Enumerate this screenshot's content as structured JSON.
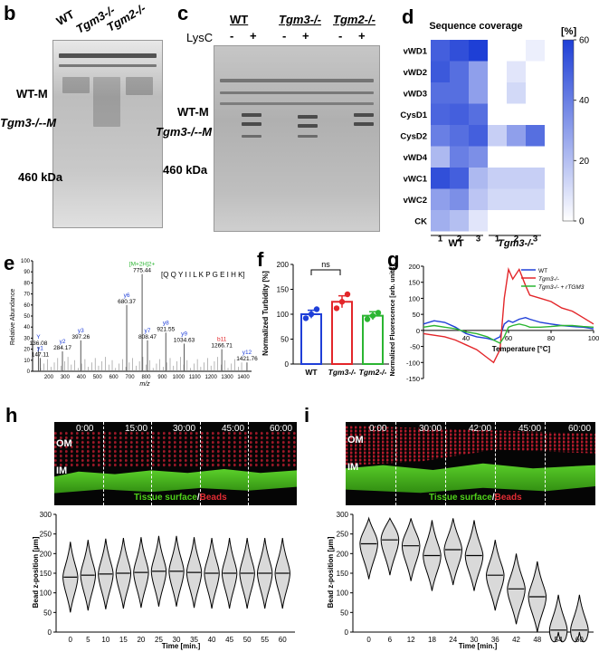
{
  "panels": {
    "b": "b",
    "c": "c",
    "d": "d",
    "e": "e",
    "f": "f",
    "g": "g",
    "h": "h",
    "i": "i"
  },
  "panel_b": {
    "lanes": [
      "WT",
      "Tgm3-/-",
      "Tgm2-/-"
    ],
    "markers": [
      "WT-M",
      "Tgm3-/--M",
      "460 kDa"
    ]
  },
  "panel_c": {
    "groups": [
      "WT",
      "Tgm3-/-",
      "Tgm2-/-"
    ],
    "lysc_label": "LysC",
    "lysc_signs": [
      "-",
      "+",
      "-",
      "+",
      "-",
      "+"
    ],
    "markers": [
      "WT-M",
      "Tgm3-/--M",
      "460 kDa"
    ]
  },
  "panel_e": {
    "ylabel": "Relative Abundance",
    "xlabel": "m/z",
    "sequence": "[Q Q Y I I L K P G E I H K]"
  },
  "panel_f": {
    "ylabel": "Normalized Turbidity [%]",
    "ns": "ns"
  },
  "panel_g": {
    "ylabel": "Normalized Fluorescence [arb. units]",
    "xlabel": "Temperature [°C]",
    "legend": [
      "WT",
      "Tgm3-/-",
      "Tgm3-/- + rTGM3"
    ]
  },
  "panel_h": {
    "times": [
      "0:00",
      "15:00",
      "30:00",
      "45:00",
      "60:00"
    ],
    "om": "OM",
    "im": "IM",
    "caption_green": "Tissue surface",
    "caption_red": "Beads"
  },
  "panel_i": {
    "times": [
      "0:00",
      "30:00",
      "42:00",
      "45:00",
      "60:00"
    ],
    "om": "OM",
    "im": "IM",
    "caption_green": "Tissue surface",
    "caption_red": "Beads"
  },
  "colors": {
    "wt": "#1f3fd8",
    "tgm3": "#e3262a",
    "tgm2": "#2bb532",
    "heat": "#2a4bd7"
  },
  "chart_data": [
    {
      "type": "heatmap",
      "title": "Sequence coverage",
      "rows": [
        "vWD1",
        "vWD2",
        "vWD3",
        "CysD1",
        "CysD2",
        "vWD4",
        "vWC1",
        "vWC2",
        "CK"
      ],
      "columns": [
        "1",
        "2",
        "3",
        "1",
        "2",
        "3"
      ],
      "column_groups": [
        "WT",
        "Tgm3-/-"
      ],
      "colorbar_label": "[%]",
      "colorbar_ticks": [
        0,
        20,
        40,
        60
      ],
      "values": [
        [
          50,
          55,
          60,
          0,
          0,
          5
        ],
        [
          52,
          45,
          30,
          0,
          8,
          0
        ],
        [
          45,
          45,
          30,
          0,
          12,
          0
        ],
        [
          48,
          50,
          45,
          0,
          0,
          0
        ],
        [
          40,
          45,
          50,
          15,
          30,
          45
        ],
        [
          22,
          40,
          35,
          0,
          0,
          0
        ],
        [
          55,
          50,
          22,
          15,
          15,
          15
        ],
        [
          30,
          35,
          18,
          12,
          12,
          12
        ],
        [
          25,
          20,
          8,
          0,
          0,
          0
        ]
      ]
    },
    {
      "type": "bar",
      "title": "",
      "categories": [
        "WT",
        "Tgm3-/-",
        "Tgm2-/-"
      ],
      "values": [
        100,
        125,
        97
      ],
      "errors": [
        8,
        12,
        8
      ],
      "points": [
        [
          92,
          100,
          110
        ],
        [
          112,
          125,
          140
        ],
        [
          90,
          97,
          103
        ]
      ],
      "ylabel": "Normalized Turbidity [%]",
      "ylim": [
        0,
        200
      ],
      "yticks": [
        0,
        50,
        100,
        150,
        200
      ]
    },
    {
      "type": "line",
      "xlabel": "Temperature [°C]",
      "ylabel": "Normalized Fluorescence [arb. units]",
      "xlim": [
        20,
        100
      ],
      "ylim": [
        -150,
        200
      ],
      "xticks": [
        40,
        60,
        80,
        100
      ],
      "yticks": [
        -150,
        -100,
        -50,
        0,
        50,
        100,
        150,
        200
      ],
      "x": [
        20,
        25,
        30,
        35,
        40,
        45,
        50,
        53,
        56,
        58,
        60,
        62,
        65,
        68,
        70,
        75,
        80,
        85,
        90,
        95,
        100
      ],
      "series": [
        {
          "name": "WT",
          "values": [
            20,
            30,
            25,
            10,
            -10,
            -20,
            -25,
            -30,
            -20,
            20,
            30,
            25,
            35,
            40,
            35,
            25,
            20,
            15,
            12,
            10,
            5
          ]
        },
        {
          "name": "Tgm3-/-",
          "values": [
            -10,
            -15,
            -20,
            -30,
            -45,
            -60,
            -85,
            -100,
            -60,
            100,
            190,
            160,
            190,
            140,
            110,
            100,
            90,
            70,
            60,
            40,
            20
          ]
        },
        {
          "name": "Tgm3-/- + rTGM3",
          "values": [
            10,
            15,
            10,
            5,
            -5,
            -10,
            -20,
            -30,
            -40,
            -20,
            10,
            15,
            20,
            15,
            10,
            10,
            12,
            15,
            15,
            12,
            10
          ]
        }
      ]
    },
    {
      "type": "scatter",
      "xlabel": "m/z",
      "ylabel": "Relative Abundance",
      "xlim": [
        100,
        1450
      ],
      "ylim": [
        0,
        100
      ],
      "xticks": [
        200,
        300,
        400,
        500,
        600,
        700,
        800,
        900,
        1000,
        1100,
        1200,
        1300,
        1400
      ],
      "yticks": [
        0,
        10,
        20,
        30,
        40,
        50,
        60,
        70,
        80,
        90,
        100
      ],
      "peaks": [
        {
          "x": 136.08,
          "y": 22,
          "label": "Y\n136.08"
        },
        {
          "x": 147.11,
          "y": 12,
          "label": "y1\n147.11"
        },
        {
          "x": 284.17,
          "y": 18,
          "label": "y2\n284.17"
        },
        {
          "x": 397.26,
          "y": 28,
          "label": "y3\n397.26"
        },
        {
          "x": 680.37,
          "y": 60,
          "label": "y6\n680.37"
        },
        {
          "x": 775.44,
          "y": 88,
          "label": "[M+2H]2+\n775.44"
        },
        {
          "x": 808.47,
          "y": 28,
          "label": "y7\n808.47"
        },
        {
          "x": 921.55,
          "y": 35,
          "label": "y8\n921.55"
        },
        {
          "x": 1034.63,
          "y": 25,
          "label": "y9\n1034.63"
        },
        {
          "x": 1266.71,
          "y": 20,
          "label": "b11\n1266.71"
        },
        {
          "x": 1421.76,
          "y": 8,
          "label": "y12\n1421.76"
        }
      ]
    },
    {
      "type": "violin",
      "xlabel": "Time [min.]",
      "ylabel": "Bead z-position [µm]",
      "ylim": [
        0,
        300
      ],
      "yticks": [
        0,
        50,
        100,
        150,
        200,
        250,
        300
      ],
      "categories": [
        "0",
        "5",
        "10",
        "15",
        "20",
        "25",
        "30",
        "35",
        "40",
        "45",
        "50",
        "55",
        "60"
      ],
      "medians": [
        140,
        145,
        148,
        150,
        152,
        155,
        155,
        152,
        150,
        150,
        150,
        150,
        150
      ]
    },
    {
      "type": "violin",
      "xlabel": "Time [min.]",
      "ylabel": "Bead z-position [µm]",
      "ylim": [
        0,
        300
      ],
      "yticks": [
        0,
        50,
        100,
        150,
        200,
        250,
        300
      ],
      "categories": [
        "0",
        "6",
        "12",
        "18",
        "24",
        "30",
        "36",
        "42",
        "48",
        "54",
        "60"
      ],
      "medians": [
        225,
        235,
        220,
        195,
        210,
        195,
        145,
        110,
        90,
        5,
        5
      ]
    }
  ]
}
